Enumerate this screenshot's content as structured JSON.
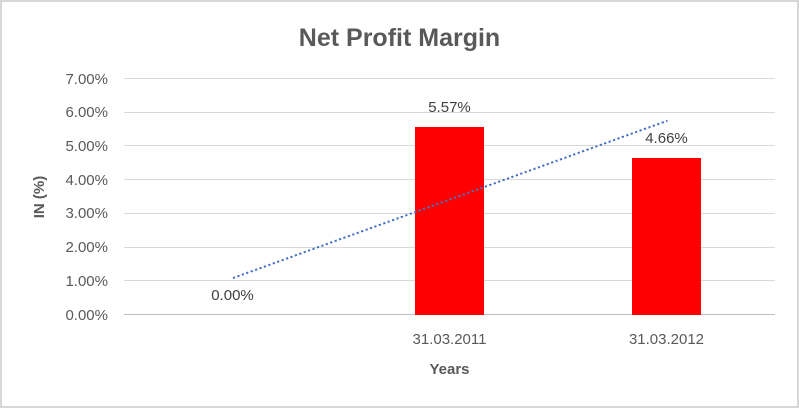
{
  "chart_data": {
    "type": "bar",
    "title": "Net Profit Margin",
    "xlabel": "Years",
    "ylabel": "IN (%)",
    "categories": [
      "",
      "31.03.2011",
      "31.03.2012"
    ],
    "values": [
      0.0,
      5.57,
      4.66
    ],
    "data_labels": [
      "0.00%",
      "5.57%",
      "4.66%"
    ],
    "ylim": [
      0,
      7
    ],
    "y_tick_labels": [
      "0.00%",
      "1.00%",
      "2.00%",
      "3.00%",
      "4.00%",
      "5.00%",
      "6.00%",
      "7.00%"
    ],
    "grid": true,
    "legend": "none",
    "bar_color": "#FF0000",
    "trendline": {
      "type": "linear",
      "style": "dotted",
      "color": "#4472C4",
      "start_value": 1.08,
      "end_value": 5.74
    }
  },
  "style": {
    "title_color": "#595959",
    "axis_text_color": "#595959",
    "data_label_color": "#404040",
    "gridline_color": "#D9D9D9",
    "axis_line_color": "#BFBFBF",
    "border_color": "#D7D7D7",
    "background": "#FFFFFF"
  }
}
